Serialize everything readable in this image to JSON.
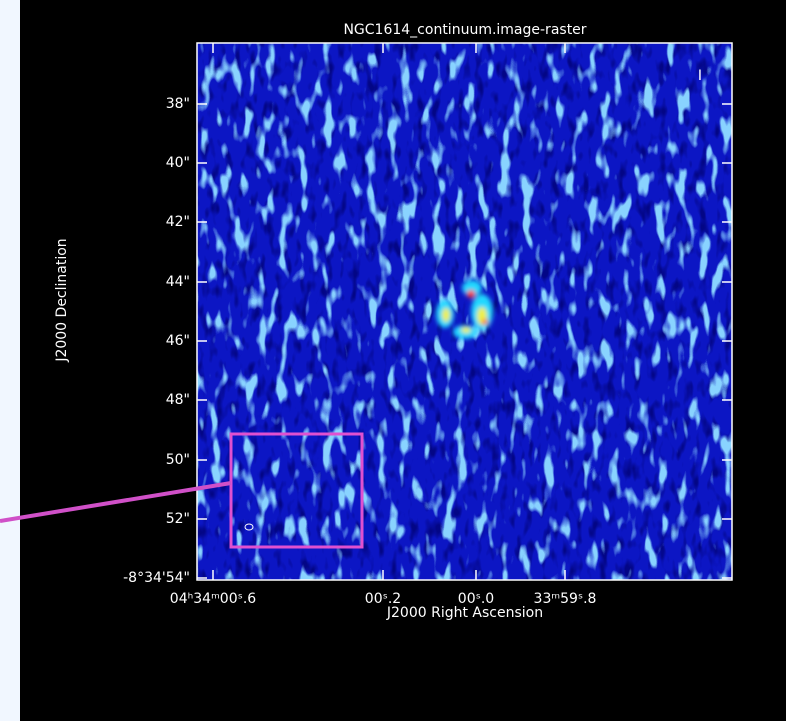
{
  "window": {
    "title": "NGC1614_continuum.image-raster",
    "stokes": "I",
    "y_axis": {
      "label": "J2000 Declination",
      "ticks": [
        "38\"",
        "40\"",
        "42\"",
        "44\"",
        "46\"",
        "48\"",
        "50\"",
        "52\"",
        "-8°34'54\""
      ]
    },
    "x_axis": {
      "label": "J2000 Right Ascension",
      "ticks": [
        "04ʰ34ᵐ00ˢ.6",
        "00ˢ.2",
        "00ˢ.0",
        "33ᵐ59ˢ.8"
      ]
    }
  }
}
